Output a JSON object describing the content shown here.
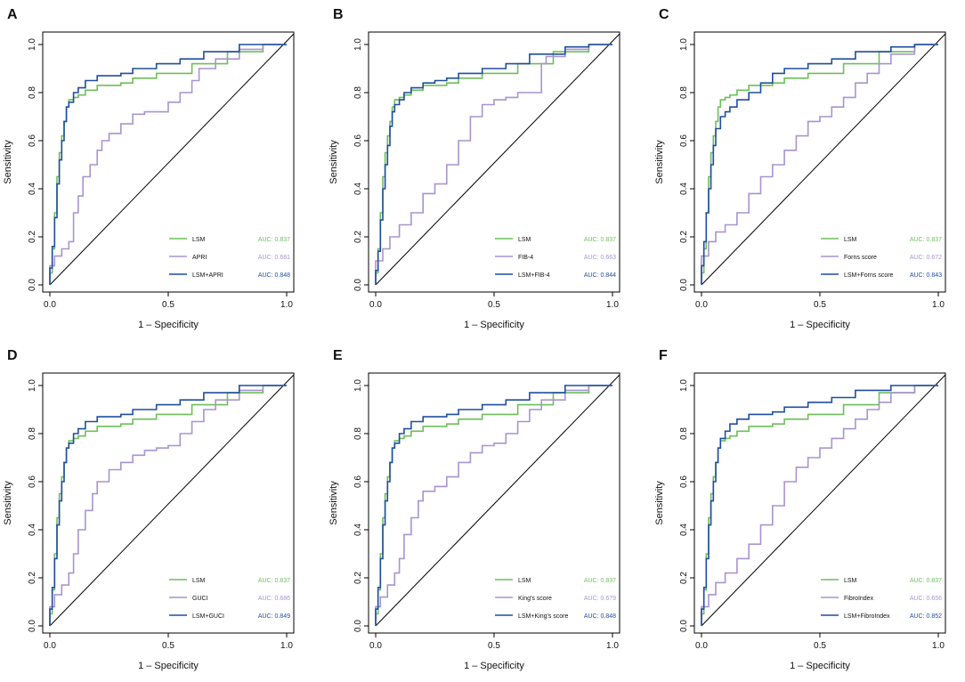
{
  "colors": {
    "lsm": "#6dbf5a",
    "marker": "#a894cf",
    "combined": "#1f4e9e",
    "axis": "#000000",
    "reference": "#000000"
  },
  "chart_data": [
    {
      "panel": "A",
      "type": "line",
      "xlabel": "1 – Specificity",
      "ylabel": "Sensitivity",
      "xlim": [
        0,
        1
      ],
      "ylim": [
        0,
        1
      ],
      "xticks": [
        "0.0",
        "0.5",
        "1.0"
      ],
      "yticks": [
        "0.0",
        "0.2",
        "0.4",
        "0.6",
        "0.8",
        "1.0"
      ],
      "legend_position": "bottom-right",
      "series": [
        {
          "name": "LSM",
          "auc": "AUC: 0.837",
          "role": "lsm",
          "x": [
            0,
            0.01,
            0.02,
            0.03,
            0.04,
            0.05,
            0.06,
            0.07,
            0.08,
            0.1,
            0.12,
            0.15,
            0.2,
            0.25,
            0.3,
            0.35,
            0.45,
            0.6,
            0.75,
            0.9,
            1
          ],
          "y": [
            0,
            0.05,
            0.15,
            0.3,
            0.45,
            0.55,
            0.62,
            0.68,
            0.74,
            0.77,
            0.78,
            0.79,
            0.81,
            0.83,
            0.83,
            0.84,
            0.86,
            0.88,
            0.92,
            0.97,
            1
          ]
        },
        {
          "name": "APRI",
          "auc": "AUC: 0.681",
          "role": "marker",
          "x": [
            0,
            0.02,
            0.05,
            0.08,
            0.1,
            0.12,
            0.14,
            0.17,
            0.2,
            0.22,
            0.25,
            0.3,
            0.35,
            0.4,
            0.45,
            0.5,
            0.55,
            0.6,
            0.63,
            0.7,
            0.8,
            0.9,
            1
          ],
          "y": [
            0,
            0.08,
            0.12,
            0.15,
            0.18,
            0.3,
            0.37,
            0.45,
            0.5,
            0.56,
            0.6,
            0.63,
            0.67,
            0.71,
            0.72,
            0.72,
            0.76,
            0.8,
            0.85,
            0.9,
            0.94,
            0.98,
            1
          ]
        },
        {
          "name": "LSM+APRI",
          "auc": "AUC: 0.848",
          "role": "combined",
          "x": [
            0,
            0.01,
            0.02,
            0.03,
            0.04,
            0.05,
            0.06,
            0.07,
            0.08,
            0.1,
            0.12,
            0.15,
            0.2,
            0.25,
            0.3,
            0.35,
            0.45,
            0.55,
            0.65,
            0.8,
            0.9,
            1
          ],
          "y": [
            0,
            0.07,
            0.16,
            0.28,
            0.42,
            0.52,
            0.6,
            0.68,
            0.74,
            0.76,
            0.8,
            0.82,
            0.85,
            0.87,
            0.87,
            0.88,
            0.9,
            0.92,
            0.94,
            0.97,
            1,
            1
          ]
        }
      ]
    },
    {
      "panel": "B",
      "type": "line",
      "xlabel": "1 – Specificity",
      "ylabel": "Sensitivity",
      "xlim": [
        0,
        1
      ],
      "ylim": [
        0,
        1
      ],
      "xticks": [
        "0.0",
        "0.5",
        "1.0"
      ],
      "yticks": [
        "0.0",
        "0.2",
        "0.4",
        "0.6",
        "0.8",
        "1.0"
      ],
      "legend_position": "bottom-right",
      "series": [
        {
          "name": "LSM",
          "auc": "AUC: 0.837",
          "role": "lsm",
          "x": [
            0,
            0.01,
            0.02,
            0.03,
            0.04,
            0.05,
            0.06,
            0.07,
            0.08,
            0.1,
            0.12,
            0.15,
            0.2,
            0.25,
            0.3,
            0.35,
            0.45,
            0.6,
            0.75,
            0.9,
            1
          ],
          "y": [
            0,
            0.05,
            0.15,
            0.3,
            0.45,
            0.55,
            0.62,
            0.68,
            0.74,
            0.77,
            0.78,
            0.79,
            0.81,
            0.83,
            0.83,
            0.84,
            0.86,
            0.88,
            0.92,
            0.97,
            1
          ]
        },
        {
          "name": "FIB-4",
          "auc": "AUC: 0.663",
          "role": "marker",
          "x": [
            0,
            0.03,
            0.06,
            0.1,
            0.15,
            0.2,
            0.25,
            0.3,
            0.35,
            0.4,
            0.45,
            0.5,
            0.55,
            0.6,
            0.65,
            0.7,
            0.72,
            0.8,
            0.9,
            1
          ],
          "y": [
            0,
            0.1,
            0.15,
            0.2,
            0.25,
            0.3,
            0.38,
            0.42,
            0.5,
            0.6,
            0.7,
            0.75,
            0.77,
            0.78,
            0.8,
            0.8,
            0.92,
            0.95,
            0.98,
            1
          ]
        },
        {
          "name": "LSM+FIB-4",
          "auc": "AUC: 0.844",
          "role": "combined",
          "x": [
            0,
            0.01,
            0.02,
            0.03,
            0.04,
            0.05,
            0.06,
            0.07,
            0.08,
            0.1,
            0.12,
            0.15,
            0.2,
            0.25,
            0.3,
            0.35,
            0.45,
            0.55,
            0.65,
            0.8,
            0.9,
            1
          ],
          "y": [
            0,
            0.06,
            0.14,
            0.27,
            0.4,
            0.5,
            0.58,
            0.66,
            0.72,
            0.75,
            0.77,
            0.8,
            0.82,
            0.84,
            0.85,
            0.86,
            0.88,
            0.9,
            0.92,
            0.96,
            0.99,
            1
          ]
        }
      ]
    },
    {
      "panel": "C",
      "type": "line",
      "xlabel": "1 – Specificity",
      "ylabel": "Sensitivity",
      "xlim": [
        0,
        1
      ],
      "ylim": [
        0,
        1
      ],
      "xticks": [
        "0.0",
        "0.5",
        "1.0"
      ],
      "yticks": [
        "0.0",
        "0.2",
        "0.4",
        "0.6",
        "0.8",
        "1.0"
      ],
      "legend_position": "bottom-right",
      "series": [
        {
          "name": "LSM",
          "auc": "AUC: 0.837",
          "role": "lsm",
          "x": [
            0,
            0.01,
            0.02,
            0.03,
            0.04,
            0.05,
            0.06,
            0.07,
            0.08,
            0.1,
            0.12,
            0.15,
            0.2,
            0.25,
            0.3,
            0.35,
            0.45,
            0.6,
            0.75,
            0.9,
            1
          ],
          "y": [
            0,
            0.05,
            0.15,
            0.3,
            0.45,
            0.55,
            0.62,
            0.68,
            0.74,
            0.77,
            0.78,
            0.79,
            0.81,
            0.83,
            0.83,
            0.84,
            0.86,
            0.88,
            0.92,
            0.97,
            1
          ]
        },
        {
          "name": "Forns score",
          "auc": "AUC: 0.672",
          "role": "marker",
          "x": [
            0,
            0.03,
            0.06,
            0.1,
            0.15,
            0.2,
            0.25,
            0.3,
            0.35,
            0.4,
            0.45,
            0.5,
            0.55,
            0.6,
            0.65,
            0.7,
            0.75,
            0.8,
            0.9,
            1
          ],
          "y": [
            0,
            0.12,
            0.18,
            0.22,
            0.25,
            0.3,
            0.38,
            0.45,
            0.5,
            0.56,
            0.62,
            0.68,
            0.7,
            0.74,
            0.78,
            0.84,
            0.88,
            0.92,
            0.96,
            1
          ]
        },
        {
          "name": "LSM+Forns score",
          "auc": "AUC: 0.843",
          "role": "combined",
          "x": [
            0,
            0.01,
            0.02,
            0.03,
            0.04,
            0.05,
            0.06,
            0.08,
            0.1,
            0.12,
            0.15,
            0.2,
            0.25,
            0.3,
            0.35,
            0.45,
            0.55,
            0.65,
            0.8,
            0.9,
            1
          ],
          "y": [
            0,
            0.08,
            0.18,
            0.3,
            0.4,
            0.5,
            0.58,
            0.65,
            0.7,
            0.72,
            0.74,
            0.77,
            0.8,
            0.84,
            0.88,
            0.9,
            0.92,
            0.94,
            0.97,
            0.99,
            1
          ]
        }
      ]
    },
    {
      "panel": "D",
      "type": "line",
      "xlabel": "1 – Specificity",
      "ylabel": "Sensitivity",
      "xlim": [
        0,
        1
      ],
      "ylim": [
        0,
        1
      ],
      "xticks": [
        "0.0",
        "0.5",
        "1.0"
      ],
      "yticks": [
        "0.0",
        "0.2",
        "0.4",
        "0.6",
        "0.8",
        "1.0"
      ],
      "legend_position": "bottom-right",
      "series": [
        {
          "name": "LSM",
          "auc": "AUC: 0.837",
          "role": "lsm",
          "x": [
            0,
            0.01,
            0.02,
            0.03,
            0.04,
            0.05,
            0.06,
            0.07,
            0.08,
            0.1,
            0.12,
            0.15,
            0.2,
            0.25,
            0.3,
            0.35,
            0.45,
            0.6,
            0.75,
            0.9,
            1
          ],
          "y": [
            0,
            0.05,
            0.15,
            0.3,
            0.45,
            0.55,
            0.62,
            0.68,
            0.74,
            0.77,
            0.78,
            0.79,
            0.81,
            0.83,
            0.83,
            0.84,
            0.86,
            0.88,
            0.92,
            0.97,
            1
          ]
        },
        {
          "name": "GUCI",
          "auc": "AUC: 0.686",
          "role": "marker",
          "x": [
            0,
            0.02,
            0.05,
            0.08,
            0.1,
            0.12,
            0.15,
            0.18,
            0.2,
            0.25,
            0.3,
            0.35,
            0.4,
            0.45,
            0.5,
            0.55,
            0.6,
            0.65,
            0.7,
            0.8,
            0.9,
            1
          ],
          "y": [
            0,
            0.08,
            0.13,
            0.17,
            0.22,
            0.3,
            0.4,
            0.48,
            0.55,
            0.6,
            0.65,
            0.68,
            0.71,
            0.73,
            0.74,
            0.75,
            0.8,
            0.85,
            0.9,
            0.94,
            0.98,
            1
          ]
        },
        {
          "name": "LSM+GUCI",
          "auc": "AUC: 0.849",
          "role": "combined",
          "x": [
            0,
            0.01,
            0.02,
            0.03,
            0.04,
            0.05,
            0.06,
            0.07,
            0.08,
            0.1,
            0.12,
            0.15,
            0.2,
            0.25,
            0.3,
            0.35,
            0.45,
            0.55,
            0.65,
            0.8,
            0.9,
            1
          ],
          "y": [
            0,
            0.07,
            0.16,
            0.28,
            0.42,
            0.52,
            0.6,
            0.68,
            0.74,
            0.76,
            0.8,
            0.82,
            0.85,
            0.87,
            0.87,
            0.88,
            0.9,
            0.92,
            0.94,
            0.97,
            1,
            1
          ]
        }
      ]
    },
    {
      "panel": "E",
      "type": "line",
      "xlabel": "1 – Specificity",
      "ylabel": "Sensitivity",
      "xlim": [
        0,
        1
      ],
      "ylim": [
        0,
        1
      ],
      "xticks": [
        "0.0",
        "0.5",
        "1.0"
      ],
      "yticks": [
        "0.0",
        "0.2",
        "0.4",
        "0.6",
        "0.8",
        "1.0"
      ],
      "legend_position": "bottom-right",
      "series": [
        {
          "name": "LSM",
          "auc": "AUC: 0.837",
          "role": "lsm",
          "x": [
            0,
            0.01,
            0.02,
            0.03,
            0.04,
            0.05,
            0.06,
            0.07,
            0.08,
            0.1,
            0.12,
            0.15,
            0.2,
            0.25,
            0.3,
            0.35,
            0.45,
            0.6,
            0.75,
            0.9,
            1
          ],
          "y": [
            0,
            0.05,
            0.15,
            0.3,
            0.45,
            0.55,
            0.62,
            0.68,
            0.74,
            0.77,
            0.78,
            0.79,
            0.81,
            0.83,
            0.83,
            0.84,
            0.86,
            0.88,
            0.92,
            0.97,
            1
          ]
        },
        {
          "name": "King's score",
          "auc": "AUC: 0.679",
          "role": "marker",
          "x": [
            0,
            0.02,
            0.05,
            0.08,
            0.1,
            0.12,
            0.15,
            0.18,
            0.2,
            0.25,
            0.3,
            0.35,
            0.4,
            0.45,
            0.5,
            0.55,
            0.6,
            0.65,
            0.7,
            0.8,
            0.9,
            1
          ],
          "y": [
            0,
            0.08,
            0.12,
            0.17,
            0.22,
            0.28,
            0.38,
            0.45,
            0.52,
            0.56,
            0.58,
            0.62,
            0.68,
            0.72,
            0.75,
            0.76,
            0.8,
            0.85,
            0.9,
            0.94,
            0.98,
            1
          ]
        },
        {
          "name": "LSM+King's score",
          "auc": "AUC: 0.848",
          "role": "combined",
          "x": [
            0,
            0.01,
            0.02,
            0.03,
            0.04,
            0.05,
            0.06,
            0.07,
            0.08,
            0.1,
            0.12,
            0.15,
            0.2,
            0.25,
            0.3,
            0.35,
            0.45,
            0.55,
            0.65,
            0.8,
            0.9,
            1
          ],
          "y": [
            0,
            0.07,
            0.16,
            0.28,
            0.42,
            0.52,
            0.6,
            0.68,
            0.74,
            0.76,
            0.8,
            0.82,
            0.85,
            0.87,
            0.87,
            0.88,
            0.9,
            0.92,
            0.94,
            0.97,
            1,
            1
          ]
        }
      ]
    },
    {
      "panel": "F",
      "type": "line",
      "xlabel": "1 – Specificity",
      "ylabel": "Sensitivity",
      "xlim": [
        0,
        1
      ],
      "ylim": [
        0,
        1
      ],
      "xticks": [
        "0.0",
        "0.5",
        "1.0"
      ],
      "yticks": [
        "0.0",
        "0.2",
        "0.4",
        "0.6",
        "0.8",
        "1.0"
      ],
      "legend_position": "bottom-right",
      "series": [
        {
          "name": "LSM",
          "auc": "AUC: 0.837",
          "role": "lsm",
          "x": [
            0,
            0.01,
            0.02,
            0.03,
            0.04,
            0.05,
            0.06,
            0.07,
            0.08,
            0.1,
            0.12,
            0.15,
            0.2,
            0.25,
            0.3,
            0.35,
            0.45,
            0.6,
            0.75,
            0.9,
            1
          ],
          "y": [
            0,
            0.05,
            0.15,
            0.3,
            0.45,
            0.55,
            0.62,
            0.68,
            0.74,
            0.77,
            0.78,
            0.79,
            0.81,
            0.83,
            0.83,
            0.84,
            0.86,
            0.88,
            0.92,
            0.97,
            1
          ]
        },
        {
          "name": "FibroIndex",
          "auc": "AUC: 0.656",
          "role": "marker",
          "x": [
            0,
            0.03,
            0.06,
            0.1,
            0.15,
            0.2,
            0.25,
            0.3,
            0.35,
            0.4,
            0.45,
            0.5,
            0.55,
            0.6,
            0.65,
            0.7,
            0.75,
            0.8,
            0.9,
            1
          ],
          "y": [
            0,
            0.08,
            0.13,
            0.18,
            0.22,
            0.28,
            0.34,
            0.42,
            0.5,
            0.6,
            0.66,
            0.7,
            0.74,
            0.78,
            0.82,
            0.86,
            0.9,
            0.93,
            0.97,
            1
          ]
        },
        {
          "name": "LSM+FibroIndex",
          "auc": "AUC: 0.852",
          "role": "combined",
          "x": [
            0,
            0.01,
            0.02,
            0.03,
            0.04,
            0.05,
            0.06,
            0.07,
            0.08,
            0.1,
            0.12,
            0.15,
            0.2,
            0.25,
            0.3,
            0.35,
            0.45,
            0.55,
            0.65,
            0.8,
            0.9,
            1
          ],
          "y": [
            0,
            0.07,
            0.16,
            0.28,
            0.42,
            0.52,
            0.6,
            0.68,
            0.74,
            0.78,
            0.81,
            0.84,
            0.86,
            0.88,
            0.88,
            0.89,
            0.91,
            0.93,
            0.95,
            0.98,
            1,
            1
          ]
        }
      ]
    }
  ]
}
